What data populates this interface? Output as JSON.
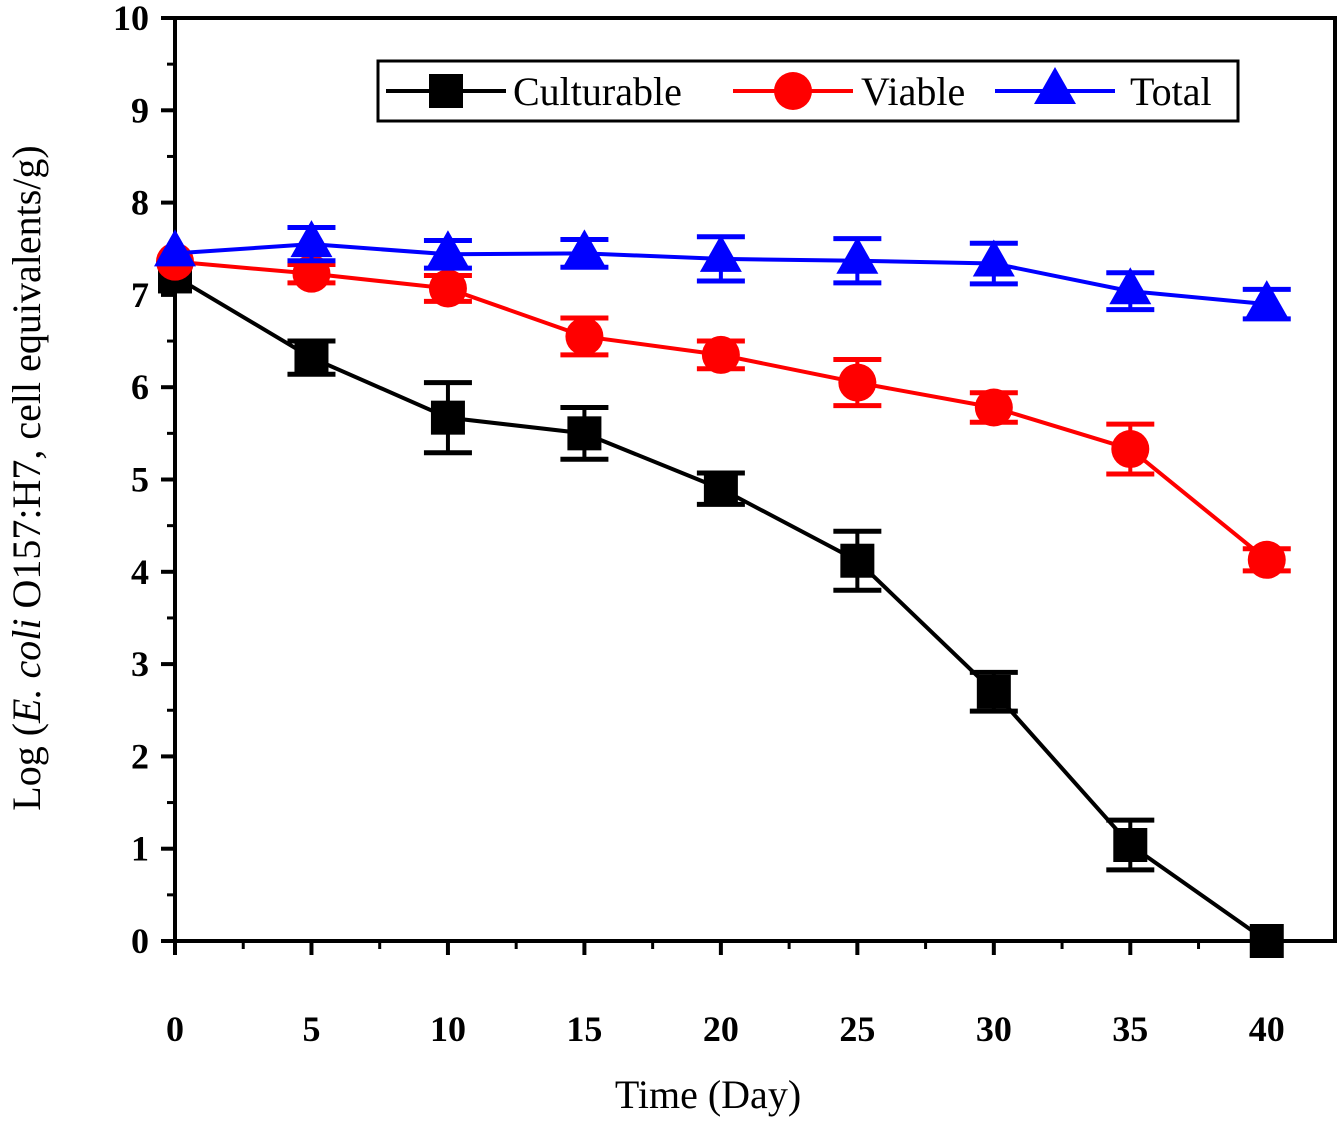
{
  "chart_data": {
    "type": "line",
    "title": "",
    "xlabel": "Time (Day)",
    "ylabel": {
      "prefix": "Log (",
      "italic": "E. coli",
      "suffix": " O157:H7, cell equivalents/g)"
    },
    "xlim": [
      0,
      42.5
    ],
    "ylim": [
      0,
      10
    ],
    "xticks": [
      0,
      5,
      10,
      15,
      20,
      25,
      30,
      35,
      40
    ],
    "yticks": [
      0,
      1,
      2,
      3,
      4,
      5,
      6,
      7,
      8,
      9,
      10
    ],
    "legend_position": "top-right",
    "x": [
      0,
      5,
      10,
      15,
      20,
      25,
      30,
      35,
      40
    ],
    "series": [
      {
        "name": "Culturable",
        "color": "#000000",
        "marker": "square",
        "values": [
          7.2,
          6.32,
          5.67,
          5.5,
          4.9,
          4.12,
          2.7,
          1.04,
          0
        ],
        "errors": [
          0.0,
          0.18,
          0.38,
          0.28,
          0.17,
          0.32,
          0.21,
          0.27,
          0.0
        ]
      },
      {
        "name": "Viable",
        "color": "#ff0000",
        "marker": "circle",
        "values": [
          7.36,
          7.23,
          7.07,
          6.55,
          6.35,
          6.05,
          5.78,
          5.33,
          4.13
        ],
        "errors": [
          0.0,
          0.1,
          0.14,
          0.2,
          0.15,
          0.25,
          0.16,
          0.27,
          0.12
        ]
      },
      {
        "name": "Total",
        "color": "#0000ff",
        "marker": "triangle",
        "values": [
          7.45,
          7.55,
          7.44,
          7.45,
          7.39,
          7.37,
          7.34,
          7.04,
          6.9
        ],
        "errors": [
          0.0,
          0.18,
          0.15,
          0.15,
          0.24,
          0.24,
          0.22,
          0.2,
          0.16
        ]
      }
    ]
  }
}
